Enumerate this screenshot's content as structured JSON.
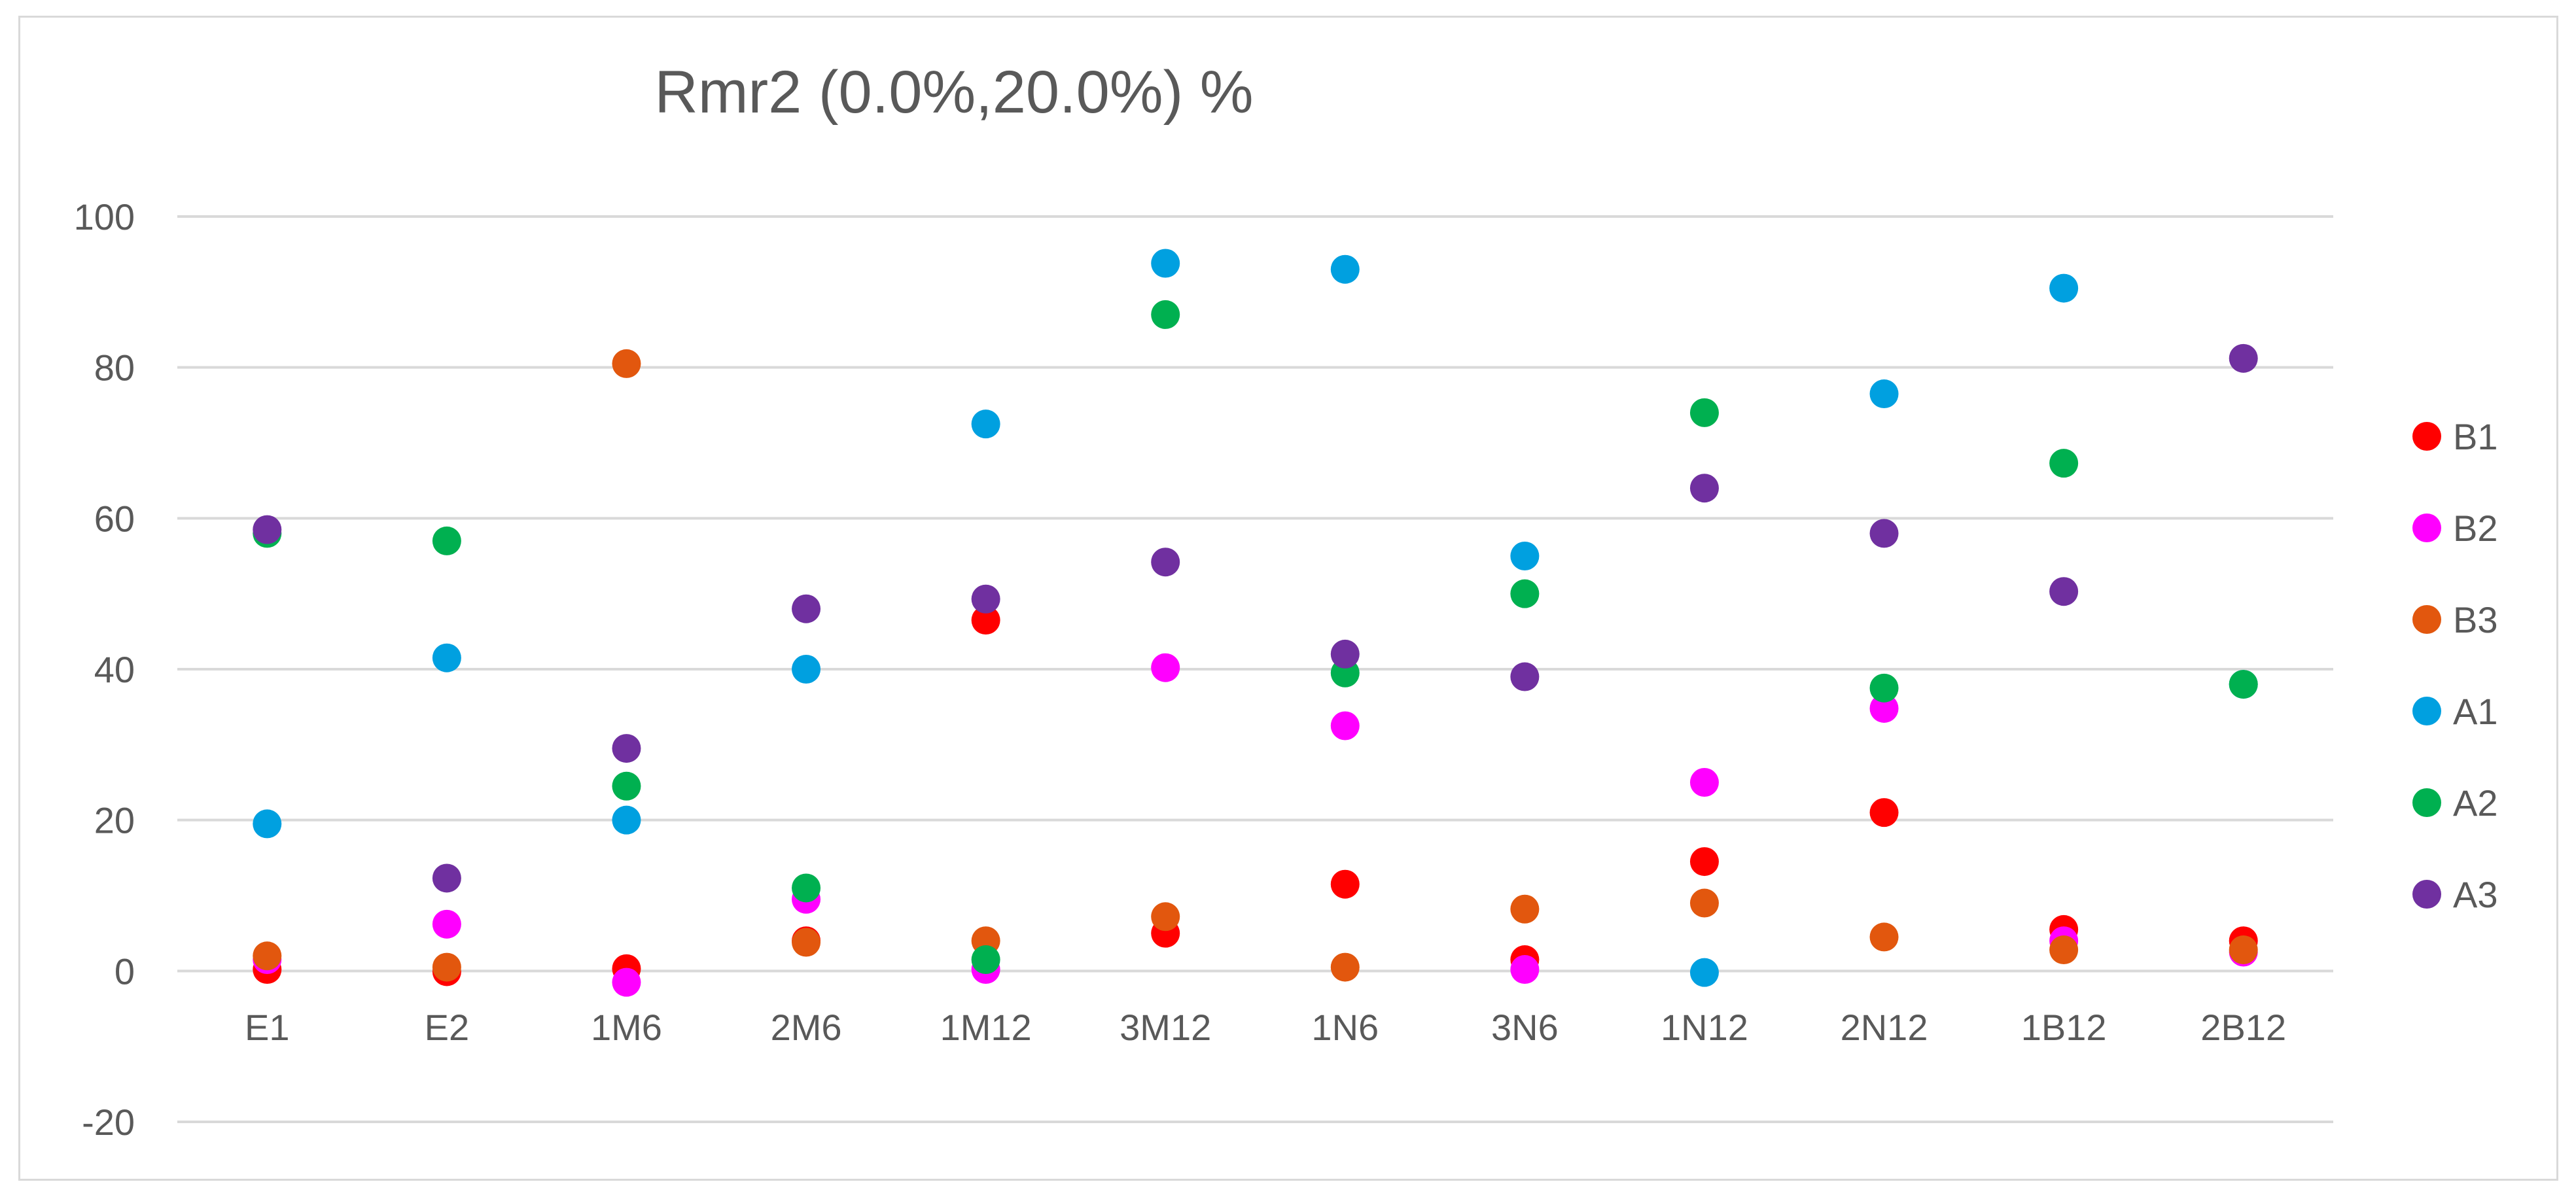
{
  "chart_data": {
    "type": "scatter",
    "title": "Rmr2 (0.0%,20.0%)  %",
    "xlabel": "",
    "ylabel": "",
    "categories": [
      "E1",
      "E2",
      "1M6",
      "2M6",
      "1M12",
      "3M12",
      "1N6",
      "3N6",
      "1N12",
      "2N12",
      "1B12",
      "2B12"
    ],
    "ylim": [
      -20,
      100
    ],
    "yticks": [
      -20,
      0,
      20,
      40,
      60,
      80,
      100
    ],
    "grid": true,
    "legend_position": "right",
    "series": [
      {
        "name": "B1",
        "color": "#ff0000",
        "values": [
          0.2,
          -0.1,
          0.3,
          4.0,
          46.5,
          5.0,
          11.5,
          1.5,
          14.5,
          21.0,
          5.5,
          4.0
        ]
      },
      {
        "name": "B2",
        "color": "#ff00ff",
        "values": [
          1.5,
          6.2,
          -1.5,
          9.5,
          0.2,
          40.2,
          32.5,
          0.2,
          25.0,
          34.8,
          4.0,
          2.5
        ]
      },
      {
        "name": "B3",
        "color": "#e2570e",
        "values": [
          2.0,
          0.5,
          80.5,
          3.8,
          4.0,
          7.2,
          0.5,
          8.2,
          9.0,
          4.5,
          2.8,
          2.8
        ]
      },
      {
        "name": "A1",
        "color": "#00a0e0",
        "values": [
          19.5,
          41.5,
          20.0,
          40.0,
          72.5,
          93.8,
          93.0,
          55.0,
          -0.2,
          76.5,
          90.5,
          38.0
        ]
      },
      {
        "name": "A2",
        "color": "#00b050",
        "values": [
          58.0,
          57.0,
          24.5,
          11.0,
          1.5,
          87.0,
          39.5,
          50.0,
          74.0,
          37.5,
          67.3,
          38.0
        ]
      },
      {
        "name": "A3",
        "color": "#7030a0",
        "values": [
          58.5,
          12.3,
          29.5,
          48.0,
          49.3,
          54.2,
          42.0,
          39.0,
          64.0,
          58.0,
          50.3,
          81.2
        ]
      }
    ]
  }
}
